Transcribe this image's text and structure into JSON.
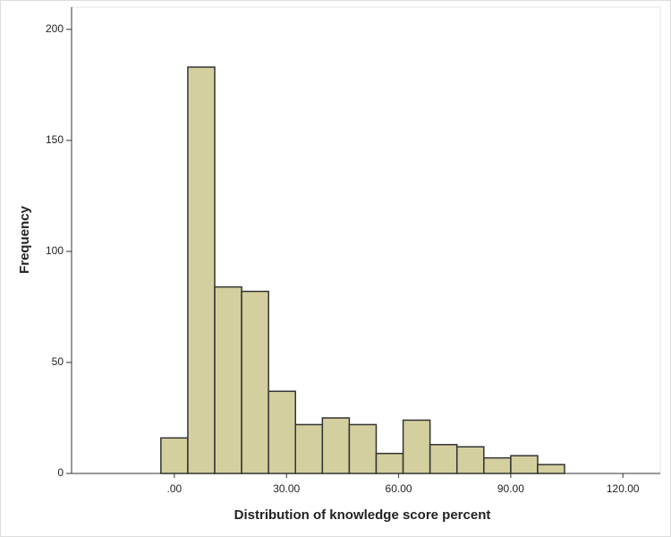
{
  "chart_data": {
    "type": "histogram",
    "x_label": "Distribution of knowledge score percent",
    "y_label": "Frequency",
    "bins": [
      -3.6,
      3.6,
      10.8,
      18,
      25.2,
      32.4,
      39.6,
      46.8,
      54,
      61.2,
      68.4,
      75.6,
      82.8,
      90,
      97.2,
      104.4
    ],
    "values": [
      16,
      183,
      84,
      82,
      37,
      22,
      25,
      22,
      9,
      24,
      13,
      12,
      7,
      8,
      4
    ],
    "color": "#d4cf9e",
    "edge_color": "#333333",
    "xlim": [
      -27.5,
      130
    ],
    "ylim": [
      0,
      210
    ],
    "xticks": [
      {
        "value": 0,
        "label": ".00"
      },
      {
        "value": 30,
        "label": "30.00"
      },
      {
        "value": 60,
        "label": "60.00"
      },
      {
        "value": 90,
        "label": "90.00"
      },
      {
        "value": 120,
        "label": "120.00"
      }
    ],
    "yticks": [
      0,
      50,
      100,
      150,
      200
    ]
  }
}
